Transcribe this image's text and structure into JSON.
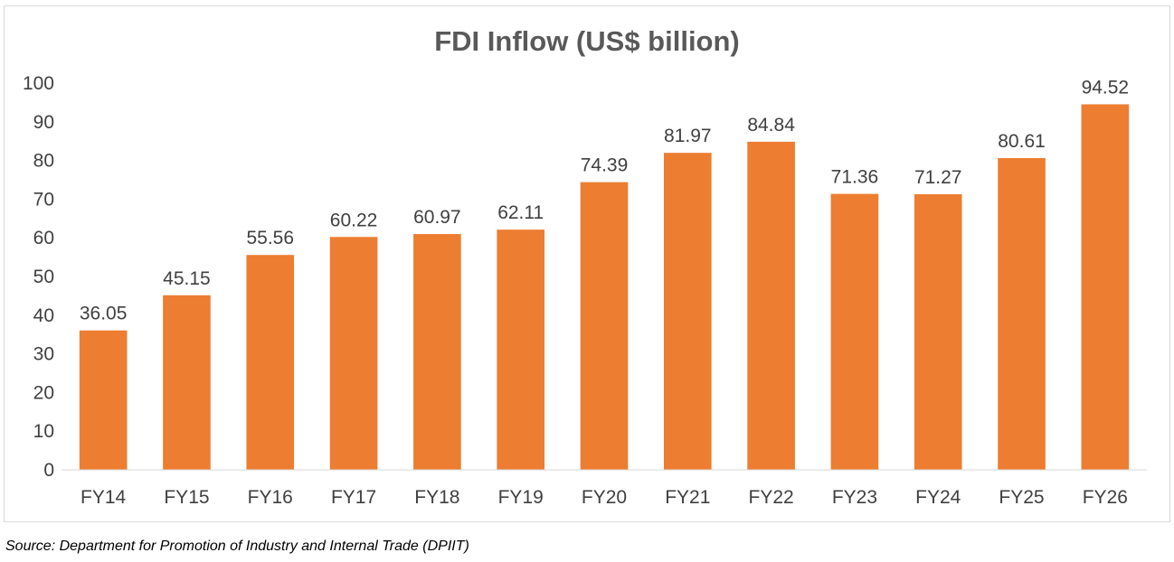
{
  "chart_data": {
    "type": "bar",
    "title": "FDI Inflow (US$ billion)",
    "categories": [
      "FY14",
      "FY15",
      "FY16",
      "FY17",
      "FY18",
      "FY19",
      "FY20",
      "FY21",
      "FY22",
      "FY23",
      "FY24",
      "FY25",
      "FY26"
    ],
    "values": [
      36.05,
      45.15,
      55.56,
      60.22,
      60.97,
      62.11,
      74.39,
      81.97,
      84.84,
      71.36,
      71.27,
      80.61,
      94.52
    ],
    "data_labels": [
      "36.05",
      "45.15",
      "55.56",
      "60.22",
      "60.97",
      "62.11",
      "74.39",
      "81.97",
      "84.84",
      "71.36",
      "71.27",
      "80.61",
      "94.52"
    ],
    "xlabel": "",
    "ylabel": "",
    "ylim": [
      0,
      100
    ],
    "yticks": [
      "0",
      "10",
      "20",
      "30",
      "40",
      "50",
      "60",
      "70",
      "80",
      "90",
      "100"
    ],
    "grid": false,
    "legend": "none",
    "bar_color": "#ED7D31",
    "axis_color": "#d9d9d9"
  },
  "source": "Source: Department for Promotion of Industry and Internal Trade (DPIIT)"
}
